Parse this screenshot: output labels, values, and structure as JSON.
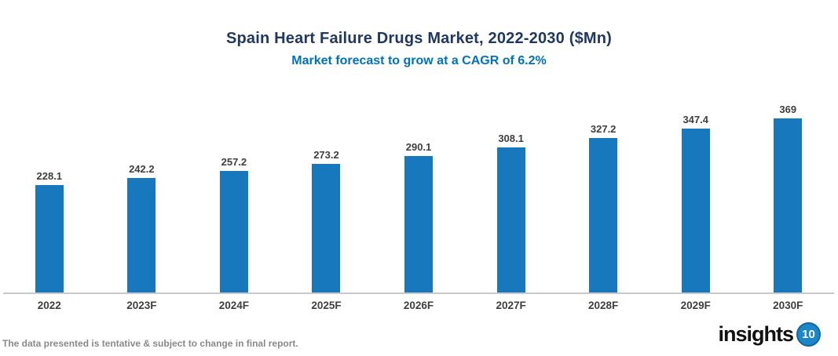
{
  "title": "Spain Heart Failure Drugs Market, 2022-2030 ($Mn)",
  "subtitle": "Market forecast to grow at a CAGR of 6.2%",
  "footer": {
    "disclaimer": "The data presented is tentative & subject to change in final report."
  },
  "logo": {
    "text": "insights",
    "badge": "10"
  },
  "colors": {
    "bar": "#1878be",
    "title": "#1f3864",
    "subtitle": "#0070c0",
    "label": "#3f3f3f",
    "axis": "#c9c9c9",
    "footer_text": "#8a8a8a",
    "logo_badge_bg": "#1b87c9",
    "logo_text": "#111111"
  },
  "chart_data": {
    "type": "bar",
    "categories": [
      "2022",
      "2023F",
      "2024F",
      "2025F",
      "2026F",
      "2027F",
      "2028F",
      "2029F",
      "2030F"
    ],
    "values": [
      228.1,
      242.2,
      257.2,
      273.2,
      290.1,
      308.1,
      327.2,
      347.4,
      369
    ],
    "title": "Spain Heart Failure Drugs Market, 2022-2030 ($Mn)",
    "subtitle": "Market forecast to grow at a CAGR of 6.2%",
    "xlabel": "",
    "ylabel": "",
    "ylim": [
      0,
      400
    ],
    "grid": false,
    "legend": false,
    "data_labels": true,
    "bar_color": "#1878be"
  }
}
